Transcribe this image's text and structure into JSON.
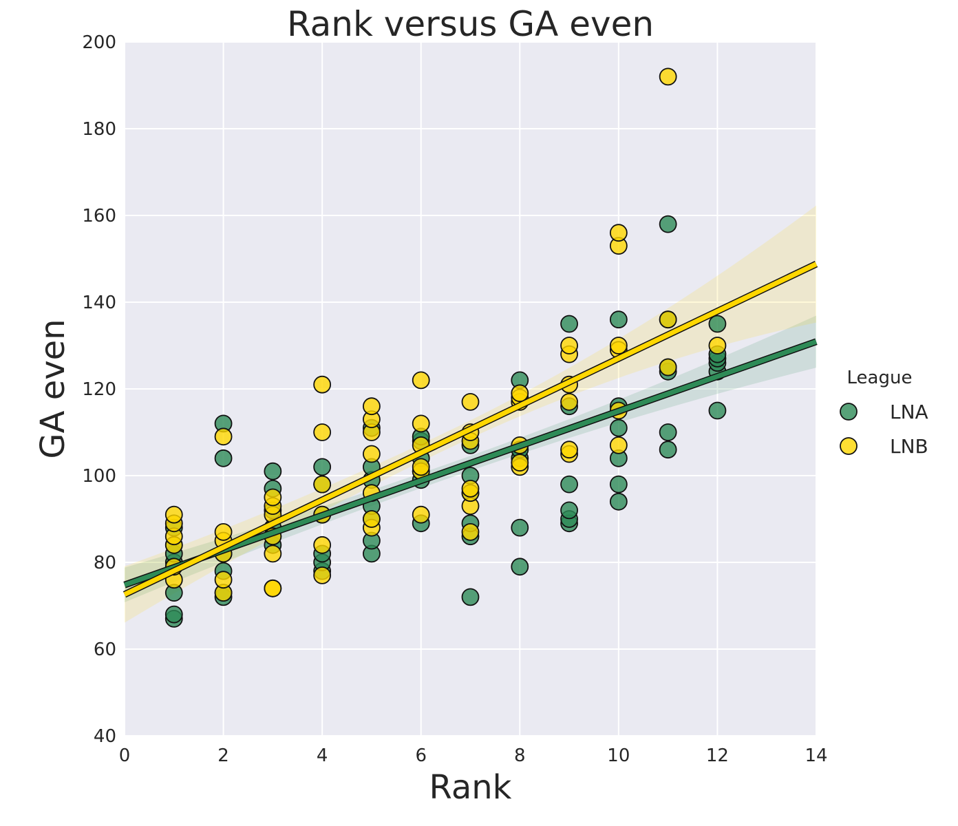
{
  "chart_data": {
    "type": "scatter",
    "title": "Rank versus GA even",
    "xlabel": "Rank",
    "ylabel": "GA even",
    "xlim": [
      0,
      14
    ],
    "ylim": [
      40,
      200
    ],
    "xticks": [
      "0",
      "2",
      "4",
      "6",
      "8",
      "10",
      "12",
      "14"
    ],
    "yticks": [
      "40",
      "60",
      "80",
      "100",
      "120",
      "140",
      "160",
      "180",
      "200"
    ],
    "grid": true,
    "legend": {
      "title": "League",
      "placement": "right"
    },
    "series": [
      {
        "name": "LNA",
        "color": "#2e8b57",
        "points": [
          [
            1,
            67
          ],
          [
            1,
            68
          ],
          [
            1,
            73
          ],
          [
            1,
            80
          ],
          [
            1,
            82
          ],
          [
            1,
            84
          ],
          [
            1,
            88
          ],
          [
            2,
            72
          ],
          [
            2,
            73
          ],
          [
            2,
            78
          ],
          [
            2,
            82
          ],
          [
            2,
            104
          ],
          [
            2,
            112
          ],
          [
            3,
            84
          ],
          [
            3,
            86
          ],
          [
            3,
            88
          ],
          [
            3,
            92
          ],
          [
            3,
            97
          ],
          [
            3,
            101
          ],
          [
            4,
            78
          ],
          [
            4,
            80
          ],
          [
            4,
            82
          ],
          [
            4,
            91
          ],
          [
            4,
            98
          ],
          [
            4,
            102
          ],
          [
            5,
            82
          ],
          [
            5,
            85
          ],
          [
            5,
            90
          ],
          [
            5,
            93
          ],
          [
            5,
            99
          ],
          [
            5,
            102
          ],
          [
            5,
            111
          ],
          [
            6,
            89
          ],
          [
            6,
            99
          ],
          [
            6,
            101
          ],
          [
            6,
            104
          ],
          [
            6,
            108
          ],
          [
            6,
            109
          ],
          [
            7,
            72
          ],
          [
            7,
            86
          ],
          [
            7,
            89
          ],
          [
            7,
            96
          ],
          [
            7,
            100
          ],
          [
            7,
            107
          ],
          [
            8,
            79
          ],
          [
            8,
            88
          ],
          [
            8,
            104
          ],
          [
            8,
            106
          ],
          [
            8,
            122
          ],
          [
            9,
            89
          ],
          [
            9,
            90
          ],
          [
            9,
            92
          ],
          [
            9,
            98
          ],
          [
            9,
            116
          ],
          [
            9,
            135
          ],
          [
            10,
            94
          ],
          [
            10,
            98
          ],
          [
            10,
            104
          ],
          [
            10,
            111
          ],
          [
            10,
            116
          ],
          [
            10,
            136
          ],
          [
            11,
            106
          ],
          [
            11,
            110
          ],
          [
            11,
            124
          ],
          [
            11,
            125
          ],
          [
            11,
            136
          ],
          [
            11,
            158
          ],
          [
            12,
            115
          ],
          [
            12,
            124
          ],
          [
            12,
            126
          ],
          [
            12,
            127
          ],
          [
            12,
            128
          ],
          [
            12,
            135
          ]
        ],
        "fit": {
          "y_at_0": 74.8,
          "y_at_14": 130.9,
          "ci_half_width_at_0": 4.0,
          "ci_half_width_at_mean": 1.7,
          "ci_half_width_at_14": 6.0
        }
      },
      {
        "name": "LNB",
        "color": "#ffd700",
        "points": [
          [
            1,
            76
          ],
          [
            1,
            79
          ],
          [
            1,
            84
          ],
          [
            1,
            86
          ],
          [
            1,
            89
          ],
          [
            1,
            91
          ],
          [
            2,
            73
          ],
          [
            2,
            76
          ],
          [
            2,
            82
          ],
          [
            2,
            85
          ],
          [
            2,
            87
          ],
          [
            2,
            109
          ],
          [
            3,
            74
          ],
          [
            3,
            74
          ],
          [
            3,
            82
          ],
          [
            3,
            86
          ],
          [
            3,
            91
          ],
          [
            3,
            93
          ],
          [
            3,
            95
          ],
          [
            4,
            77
          ],
          [
            4,
            84
          ],
          [
            4,
            91
          ],
          [
            4,
            98
          ],
          [
            4,
            110
          ],
          [
            4,
            121
          ],
          [
            5,
            88
          ],
          [
            5,
            90
          ],
          [
            5,
            96
          ],
          [
            5,
            105
          ],
          [
            5,
            110
          ],
          [
            5,
            113
          ],
          [
            5,
            116
          ],
          [
            6,
            91
          ],
          [
            6,
            101
          ],
          [
            6,
            102
          ],
          [
            6,
            107
          ],
          [
            6,
            112
          ],
          [
            6,
            122
          ],
          [
            7,
            87
          ],
          [
            7,
            93
          ],
          [
            7,
            96
          ],
          [
            7,
            97
          ],
          [
            7,
            108
          ],
          [
            7,
            110
          ],
          [
            7,
            117
          ],
          [
            8,
            102
          ],
          [
            8,
            103
          ],
          [
            8,
            107
          ],
          [
            8,
            117
          ],
          [
            8,
            118
          ],
          [
            8,
            119
          ],
          [
            9,
            105
          ],
          [
            9,
            106
          ],
          [
            9,
            117
          ],
          [
            9,
            121
          ],
          [
            9,
            128
          ],
          [
            9,
            130
          ],
          [
            10,
            107
          ],
          [
            10,
            115
          ],
          [
            10,
            129
          ],
          [
            10,
            130
          ],
          [
            10,
            153
          ],
          [
            10,
            156
          ],
          [
            11,
            125
          ],
          [
            11,
            136
          ],
          [
            11,
            192
          ],
          [
            12,
            130
          ]
        ],
        "fit": {
          "y_at_0": 72.6,
          "y_at_14": 148.8,
          "ci_half_width_at_0": 6.5,
          "ci_half_width_at_mean": 2.0,
          "ci_half_width_at_14": 13.5
        }
      }
    ]
  }
}
